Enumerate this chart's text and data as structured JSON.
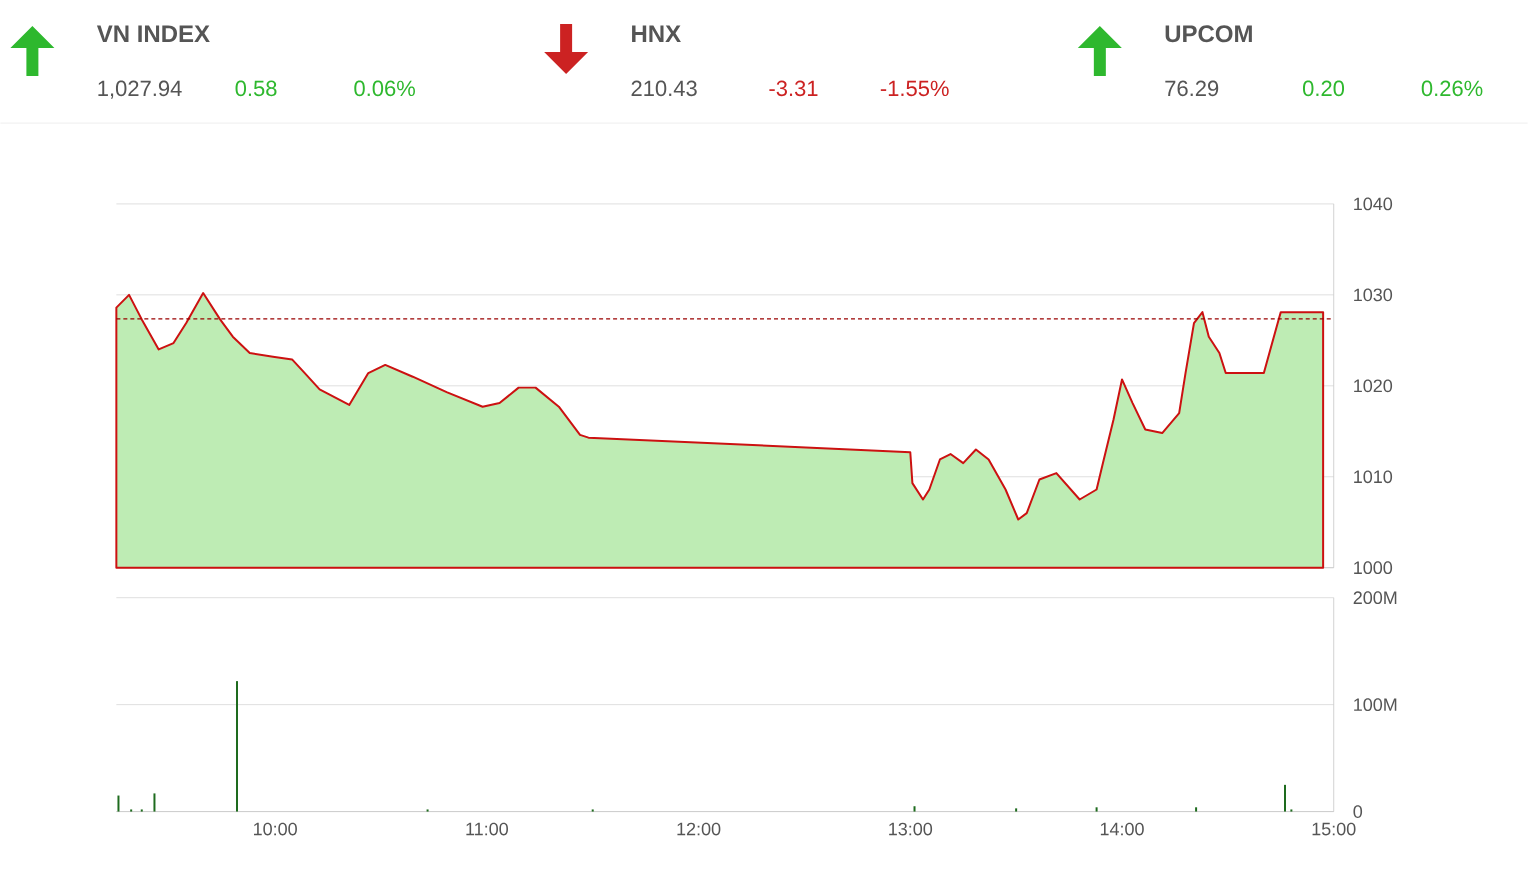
{
  "chart_data": [
    {
      "type": "other",
      "categories": [
        "VN INDEX",
        "HNX",
        "UPCOM"
      ],
      "series": [
        {
          "values": [
            1027.94,
            210.43,
            76.29
          ],
          "value_labels": [
            "1,027.94",
            "210.43",
            "76.29"
          ],
          "color": "#555555"
        },
        {
          "values": [
            0.58,
            -3.31,
            0.2
          ],
          "value_labels": [
            "0.58",
            "-3.31",
            "0.20"
          ],
          "colors": [
            "#2eb82e",
            "#cc2222",
            "#2eb82e"
          ]
        },
        {
          "values": [
            0.06,
            -1.55,
            0.26
          ],
          "value_labels": [
            "0.06%",
            "-1.55%",
            "0.26%"
          ],
          "colors": [
            "#2eb82e",
            "#cc2222",
            "#2eb82e"
          ]
        }
      ]
    },
    {
      "type": "area",
      "x": [
        9.25,
        9.31,
        9.37,
        9.45,
        9.52,
        9.58,
        9.66,
        9.74,
        9.8,
        9.88,
        9.99,
        10.08,
        10.14,
        10.21,
        10.35,
        10.44,
        10.52,
        10.65,
        10.81,
        10.98,
        11.06,
        11.15,
        11.23,
        11.34,
        11.44,
        11.48,
        13.0,
        13.01,
        13.06,
        13.09,
        13.14,
        13.19,
        13.25,
        13.31,
        13.37,
        13.45,
        13.51,
        13.55,
        13.61,
        13.69,
        13.8,
        13.88,
        13.91,
        13.96,
        14.0,
        14.05,
        14.11,
        14.19,
        14.27,
        14.3,
        14.34,
        14.38,
        14.41,
        14.46,
        14.49,
        14.67,
        14.74,
        14.75,
        14.95
      ],
      "series": [
        {
          "color": "#cc1111",
          "values": [
            1028.6,
            1030.0,
            1027.3,
            1024.0,
            1024.7,
            1026.9,
            1030.2,
            1027.3,
            1025.4,
            1023.6,
            1023.2,
            1022.9,
            1021.4,
            1019.6,
            1017.9,
            1021.4,
            1022.3,
            1021.0,
            1019.3,
            1017.7,
            1018.1,
            1019.8,
            1019.8,
            1017.7,
            1014.6,
            1014.3,
            1012.7,
            1009.3,
            1007.5,
            1008.6,
            1011.9,
            1012.5,
            1011.5,
            1013.0,
            1011.9,
            1008.6,
            1005.3,
            1006.0,
            1009.7,
            1010.4,
            1007.5,
            1008.6,
            1011.5,
            1016.3,
            1020.7,
            1018.1,
            1015.2,
            1014.8,
            1017.0,
            1021.4,
            1026.9,
            1028.1,
            1025.4,
            1023.6,
            1021.4,
            1021.4,
            1027.3,
            1028.1,
            1028.1
          ]
        }
      ],
      "xlim": [
        9.25,
        15
      ],
      "xticks": [
        {
          "value": 10,
          "label": null
        },
        {
          "value": 11,
          "label": null
        },
        {
          "value": 12,
          "label": null
        },
        {
          "value": 13,
          "label": null
        },
        {
          "value": 14,
          "label": null
        },
        {
          "value": 15,
          "label": null
        }
      ],
      "ylim": [
        1000,
        1040
      ],
      "yticks": [
        1000,
        1010,
        1020,
        1030,
        1040
      ],
      "grid": "y",
      "tick_labels": "y",
      "ref_lines": [
        {
          "axis": "y",
          "value": 1027.36,
          "color": "#990000",
          "line_style": "dashed"
        }
      ]
    },
    {
      "type": "bar",
      "x": [
        9.26,
        9.32,
        9.37,
        9.43,
        9.82,
        10.33,
        10.72,
        11.5,
        13.02,
        13.5,
        13.88,
        14.35,
        14.77,
        14.8
      ],
      "values": [
        15,
        2,
        2,
        17,
        122,
        null,
        2,
        2,
        5,
        3,
        4,
        4,
        25,
        2
      ],
      "color": "#1e6b1e",
      "xlim": [
        9.25,
        15
      ],
      "xticks": [
        {
          "value": 10,
          "label": "10:00"
        },
        {
          "value": 11,
          "label": "11:00"
        },
        {
          "value": 12,
          "label": "12:00"
        },
        {
          "value": 13,
          "label": "13:00"
        },
        {
          "value": 14,
          "label": "14:00"
        },
        {
          "value": 15,
          "label": "15:00"
        }
      ],
      "ylim": [
        0,
        200
      ],
      "yticks": [
        {
          "value": 0,
          "label": "0"
        },
        {
          "value": 100,
          "label": "100M"
        },
        {
          "value": 200,
          "label": "200M"
        }
      ],
      "grid": "y"
    }
  ]
}
